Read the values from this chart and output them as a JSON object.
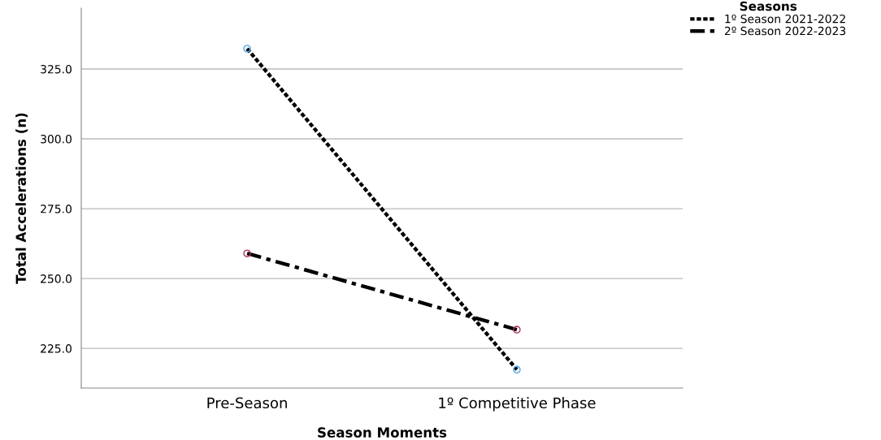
{
  "chart_data": {
    "type": "line",
    "xlabel": "Season Moments",
    "ylabel": "Total Accelerations (n)",
    "legend_title": "Seasons",
    "categories": [
      "Pre-Season",
      "1º Competitive Phase"
    ],
    "series": [
      {
        "name": "1º Season 2021-2022",
        "color": "#000000",
        "colors": [
          "#4da6e8",
          "#4da6e8"
        ],
        "line_style": "dotted",
        "values": [
          332.3,
          217.4
        ]
      },
      {
        "name": "2º Season 2022-2023",
        "color": "#000000",
        "colors": [
          "#b0305a",
          "#b0305a"
        ],
        "line_style": "dashdot",
        "values": [
          259.0,
          231.7
        ]
      }
    ],
    "ylim": [
      210.8,
      346.8
    ],
    "yticks": [
      {
        "value": 225,
        "label": "225.0"
      },
      {
        "value": 250,
        "label": "250.0"
      },
      {
        "value": 275,
        "label": "275.0"
      },
      {
        "value": 300,
        "label": "300.0"
      },
      {
        "value": 325,
        "label": "325.0"
      }
    ],
    "grid": "y",
    "legend": "top right",
    "marker": "circle"
  }
}
